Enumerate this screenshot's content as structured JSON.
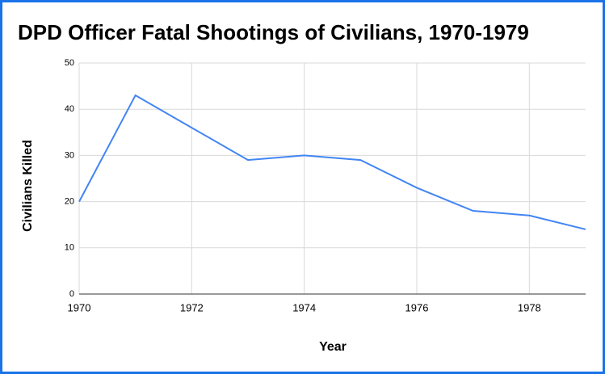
{
  "chart_data": {
    "type": "line",
    "title": "DPD Officer Fatal Shootings of Civilians, 1970-1979",
    "x_label": "Year",
    "y_label": "Civilians Killed",
    "x": [
      1970,
      1971,
      1972,
      1973,
      1974,
      1975,
      1976,
      1977,
      1978,
      1979
    ],
    "series": [
      {
        "name": "Civilians Killed",
        "color": "#4285f4",
        "values": [
          20,
          43,
          36,
          29,
          30,
          29,
          23,
          18,
          17,
          14
        ]
      }
    ],
    "xlim": [
      1970,
      1979
    ],
    "xticks": [
      1970,
      1972,
      1974,
      1976,
      1978
    ],
    "ylim": [
      0,
      50
    ],
    "yticks": [
      0,
      10,
      20,
      30,
      40,
      50
    ],
    "grid": true
  }
}
